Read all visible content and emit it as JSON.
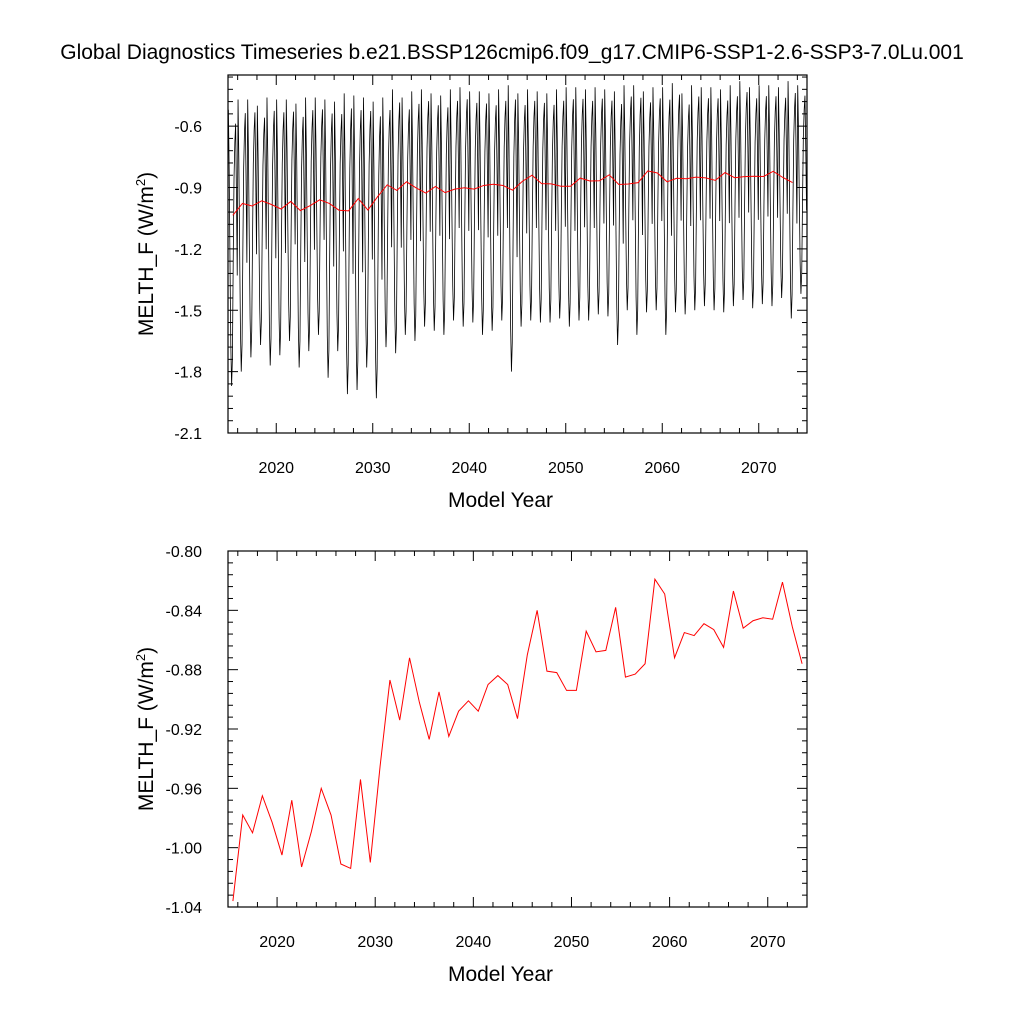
{
  "figure": {
    "title": "Global Diagnostics Timeseries b.e21.BSSP126cmip6.f09_g17.CMIP6-SSP1-2.6-SSP3-7.0Lu.001",
    "line_colors": {
      "monthly": "#000000",
      "annual": "#ff0000"
    }
  },
  "chart_data": [
    {
      "type": "line",
      "title": "",
      "xlabel": "Model Year",
      "ylabel_main": "MELTH_F (W/m",
      "ylabel_sup": "2",
      "ylabel_tail": ")",
      "xlim": [
        2015,
        2075
      ],
      "ylim": [
        -2.1,
        -0.35
      ],
      "xticks": [
        "2020",
        "2030",
        "2040",
        "2050",
        "2060",
        "2070"
      ],
      "yticks": [
        "-0.6",
        "-0.9",
        "-1.2",
        "-1.5",
        "-1.8",
        "-2.1"
      ],
      "grid": false,
      "legend": "none",
      "series": [
        {
          "style": "monthly",
          "color": "#000000",
          "x_start": 2015.04,
          "x_step": 0.08333,
          "monthly_peak": [
            -0.52,
            -0.47,
            -0.47,
            -0.5,
            -0.46,
            -0.47,
            -0.47,
            -0.49,
            -0.46,
            -0.46,
            -0.47,
            -0.48,
            -0.44,
            -0.45,
            -0.46,
            -0.48,
            -0.46,
            -0.42,
            -0.46,
            -0.43,
            -0.42,
            -0.44,
            -0.45,
            -0.42,
            -0.41,
            -0.43,
            -0.43,
            -0.44,
            -0.42,
            -0.4,
            -0.44,
            -0.42,
            -0.43,
            -0.44,
            -0.42,
            -0.41,
            -0.41,
            -0.42,
            -0.41,
            -0.42,
            -0.43,
            -0.4,
            -0.4,
            -0.43,
            -0.41,
            -0.41,
            -0.39,
            -0.44,
            -0.4,
            -0.41,
            -0.41,
            -0.42,
            -0.4,
            -0.38,
            -0.41,
            -0.4,
            -0.4,
            -0.41,
            -0.38,
            -0.4
          ],
          "monthly_trough": [
            -1.87,
            -1.8,
            -1.73,
            -1.67,
            -1.77,
            -1.72,
            -1.65,
            -1.78,
            -1.7,
            -1.62,
            -1.83,
            -1.7,
            -1.91,
            -1.89,
            -1.78,
            -1.93,
            -1.68,
            -1.71,
            -1.62,
            -1.65,
            -1.58,
            -1.6,
            -1.62,
            -1.55,
            -1.58,
            -1.56,
            -1.62,
            -1.6,
            -1.55,
            -1.8,
            -1.58,
            -1.55,
            -1.56,
            -1.56,
            -1.54,
            -1.58,
            -1.55,
            -1.55,
            -1.52,
            -1.53,
            -1.67,
            -1.5,
            -1.62,
            -1.51,
            -1.5,
            -1.62,
            -1.51,
            -1.52,
            -1.5,
            -1.48,
            -1.5,
            -1.51,
            -1.48,
            -1.45,
            -1.49,
            -1.47,
            -1.48,
            -1.44,
            -1.54,
            -1.42
          ]
        },
        {
          "style": "annual",
          "color": "#ff0000",
          "x": [
            2015.5,
            2016.5,
            2017.5,
            2018.5,
            2019.5,
            2020.5,
            2021.5,
            2022.5,
            2023.5,
            2024.5,
            2025.5,
            2026.5,
            2027.5,
            2028.5,
            2029.5,
            2030.5,
            2031.5,
            2032.5,
            2033.5,
            2034.5,
            2035.5,
            2036.5,
            2037.5,
            2038.5,
            2039.5,
            2040.5,
            2041.5,
            2042.5,
            2043.5,
            2044.5,
            2045.5,
            2046.5,
            2047.5,
            2048.5,
            2049.5,
            2050.5,
            2051.5,
            2052.5,
            2053.5,
            2054.5,
            2055.5,
            2056.5,
            2057.5,
            2058.5,
            2059.5,
            2060.5,
            2061.5,
            2062.5,
            2063.5,
            2064.5,
            2065.5,
            2066.5,
            2067.5,
            2068.5,
            2069.5,
            2070.5,
            2071.5,
            2072.5,
            2073.5
          ],
          "y": [
            -1.036,
            -0.978,
            -0.99,
            -0.965,
            -0.983,
            -1.005,
            -0.968,
            -1.013,
            -0.989,
            -0.96,
            -0.978,
            -1.011,
            -1.014,
            -0.954,
            -1.01,
            -0.945,
            -0.887,
            -0.914,
            -0.872,
            -0.902,
            -0.927,
            -0.895,
            -0.925,
            -0.908,
            -0.901,
            -0.908,
            -0.89,
            -0.884,
            -0.89,
            -0.913,
            -0.87,
            -0.84,
            -0.881,
            -0.882,
            -0.894,
            -0.894,
            -0.854,
            -0.868,
            -0.867,
            -0.838,
            -0.885,
            -0.883,
            -0.876,
            -0.819,
            -0.829,
            -0.872,
            -0.855,
            -0.857,
            -0.849,
            -0.853,
            -0.865,
            -0.827,
            -0.852,
            -0.847,
            -0.845,
            -0.846,
            -0.821,
            -0.851,
            -0.876
          ]
        }
      ]
    },
    {
      "type": "line",
      "title": "",
      "xlabel": "Model Year",
      "ylabel_main": "MELTH_F (W/m",
      "ylabel_sup": "2",
      "ylabel_tail": ")",
      "xlim": [
        2015,
        2074
      ],
      "ylim": [
        -1.04,
        -0.8
      ],
      "xticks": [
        "2020",
        "2030",
        "2040",
        "2050",
        "2060",
        "2070"
      ],
      "yticks": [
        "-0.80",
        "-0.84",
        "-0.88",
        "-0.92",
        "-0.96",
        "-1.00",
        "-1.04"
      ],
      "grid": false,
      "legend": "none",
      "series": [
        {
          "style": "annual",
          "color": "#ff0000",
          "x": [
            2015.5,
            2016.5,
            2017.5,
            2018.5,
            2019.5,
            2020.5,
            2021.5,
            2022.5,
            2023.5,
            2024.5,
            2025.5,
            2026.5,
            2027.5,
            2028.5,
            2029.5,
            2030.5,
            2031.5,
            2032.5,
            2033.5,
            2034.5,
            2035.5,
            2036.5,
            2037.5,
            2038.5,
            2039.5,
            2040.5,
            2041.5,
            2042.5,
            2043.5,
            2044.5,
            2045.5,
            2046.5,
            2047.5,
            2048.5,
            2049.5,
            2050.5,
            2051.5,
            2052.5,
            2053.5,
            2054.5,
            2055.5,
            2056.5,
            2057.5,
            2058.5,
            2059.5,
            2060.5,
            2061.5,
            2062.5,
            2063.5,
            2064.5,
            2065.5,
            2066.5,
            2067.5,
            2068.5,
            2069.5,
            2070.5,
            2071.5,
            2072.5,
            2073.5
          ],
          "y": [
            -1.036,
            -0.978,
            -0.99,
            -0.965,
            -0.983,
            -1.005,
            -0.968,
            -1.013,
            -0.989,
            -0.96,
            -0.978,
            -1.011,
            -1.014,
            -0.954,
            -1.01,
            -0.945,
            -0.887,
            -0.914,
            -0.872,
            -0.902,
            -0.927,
            -0.895,
            -0.925,
            -0.908,
            -0.901,
            -0.908,
            -0.89,
            -0.884,
            -0.89,
            -0.913,
            -0.87,
            -0.84,
            -0.881,
            -0.882,
            -0.894,
            -0.894,
            -0.854,
            -0.868,
            -0.867,
            -0.838,
            -0.885,
            -0.883,
            -0.876,
            -0.819,
            -0.829,
            -0.872,
            -0.855,
            -0.857,
            -0.849,
            -0.853,
            -0.865,
            -0.827,
            -0.852,
            -0.847,
            -0.845,
            -0.846,
            -0.821,
            -0.851,
            -0.876
          ]
        }
      ]
    }
  ]
}
